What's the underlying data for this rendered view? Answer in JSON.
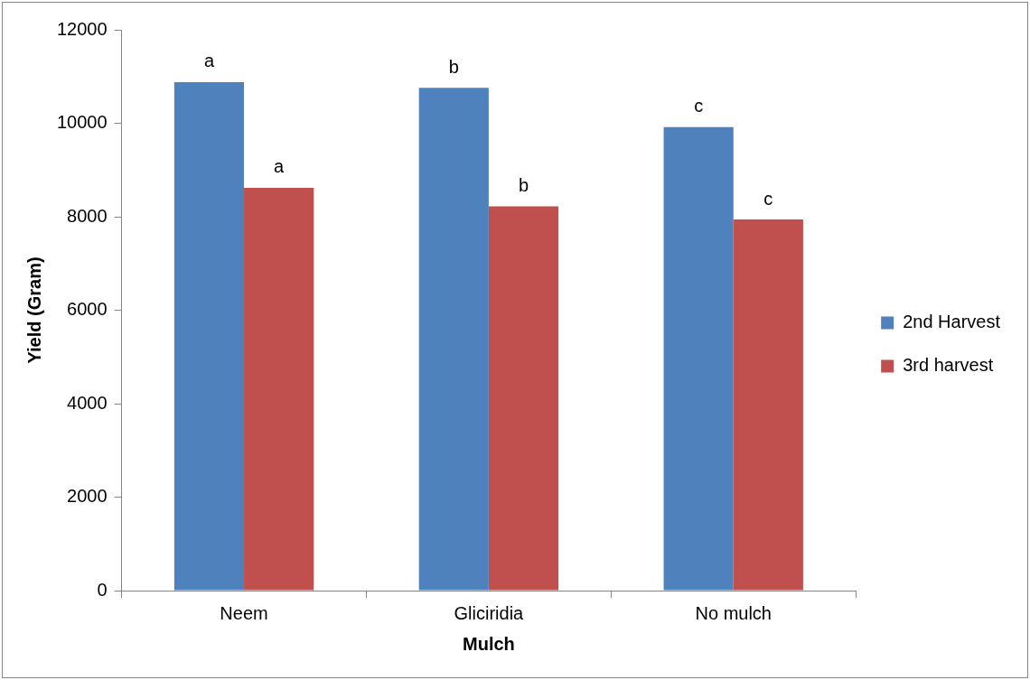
{
  "chart_data": {
    "type": "bar",
    "xlabel": "Mulch",
    "ylabel": "Yield (Gram)",
    "categories": [
      "Neem",
      "Gliciridia",
      "No mulch"
    ],
    "series": [
      {
        "name": "2nd Harvest",
        "color": "#4f81bd",
        "values": [
          10880,
          10760,
          9920
        ]
      },
      {
        "name": "3rd harvest",
        "color": "#c0504d",
        "values": [
          8620,
          8220,
          7940
        ]
      }
    ],
    "ylim": [
      0,
      12000
    ],
    "yticks": [
      0,
      2000,
      4000,
      6000,
      8000,
      10000,
      12000
    ],
    "grid": false,
    "legend": "right",
    "annotations": [
      {
        "text": "a",
        "x": "Neem",
        "y": 10880
      },
      {
        "text": "a",
        "x": "Neem",
        "y": 8620
      },
      {
        "text": "b",
        "x": "Gliciridia",
        "y": 10760
      },
      {
        "text": "b",
        "x": "Gliciridia",
        "y": 8220
      },
      {
        "text": "c",
        "x": "No mulch",
        "y": 9920
      },
      {
        "text": "c",
        "x": "No mulch",
        "y": 7940
      }
    ]
  }
}
